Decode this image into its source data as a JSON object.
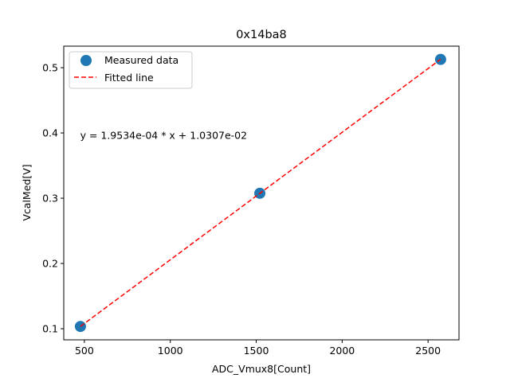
{
  "chart_data": {
    "type": "scatter",
    "title": "0x14ba8",
    "xlabel": "ADC_Vmux8[Count]",
    "ylabel": "VcalMed[V]",
    "xlim": [
      380,
      2680
    ],
    "ylim": [
      0.083,
      0.533
    ],
    "xticks": [
      {
        "value": 500,
        "label": "500"
      },
      {
        "value": 1000,
        "label": "1000"
      },
      {
        "value": 1500,
        "label": "1500"
      },
      {
        "value": 2000,
        "label": "2000"
      },
      {
        "value": 2500,
        "label": "2500"
      }
    ],
    "yticks": [
      {
        "value": 0.1,
        "label": "0.1"
      },
      {
        "value": 0.2,
        "label": "0.2"
      },
      {
        "value": 0.3,
        "label": "0.3"
      },
      {
        "value": 0.4,
        "label": "0.4"
      },
      {
        "value": 0.5,
        "label": "0.5"
      }
    ],
    "grid": false,
    "legend_position": "top-left",
    "series": [
      {
        "name": "Measured data",
        "kind": "scatter",
        "color": "#1f77b4",
        "x": [
          477,
          1521,
          2573
        ],
        "y": [
          0.1035,
          0.3076,
          0.5127
        ]
      },
      {
        "name": "Fitted line",
        "kind": "line",
        "style": "dashed",
        "color": "#ff0000",
        "x": [
          477,
          2573
        ],
        "y": [
          0.1035,
          0.5129
        ]
      }
    ],
    "annotations": [
      {
        "text": "y = 1.9534e-04 * x + 1.0307e-02",
        "x": 480,
        "y": 0.385
      }
    ]
  }
}
